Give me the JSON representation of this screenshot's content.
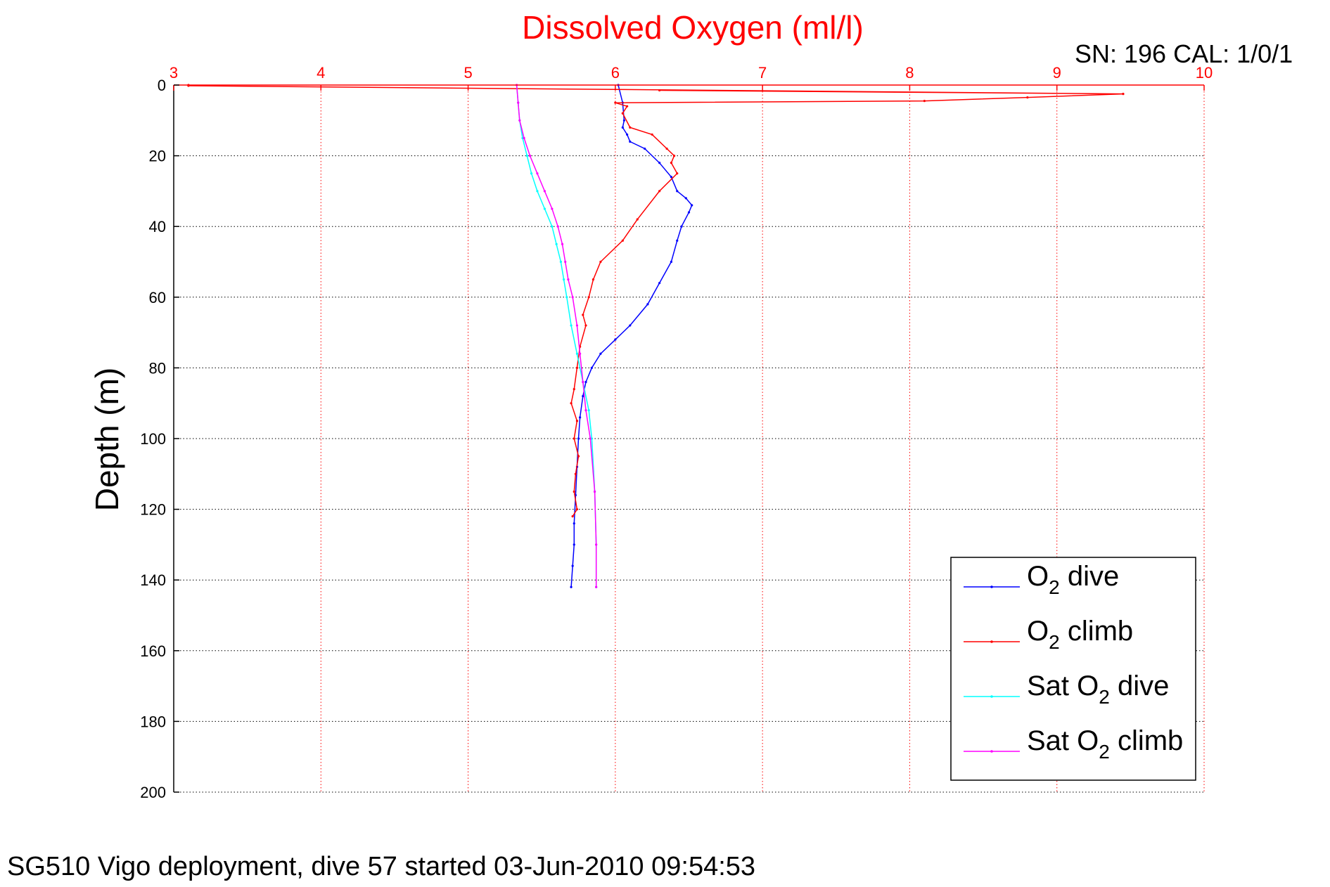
{
  "chart_data": {
    "type": "line",
    "title": "Dissolved Oxygen (ml/l)",
    "xlabel": "Dissolved Oxygen (ml/l)",
    "ylabel": "Depth (m)",
    "xlim": [
      3,
      10
    ],
    "ylim": [
      0,
      200
    ],
    "y_reversed": true,
    "x_axis_position": "top",
    "xticks": [
      "3",
      "4",
      "5",
      "6",
      "7",
      "8",
      "9",
      "10"
    ],
    "yticks": [
      "0",
      "20",
      "40",
      "60",
      "80",
      "100",
      "120",
      "140",
      "160",
      "180",
      "200"
    ],
    "grid": true,
    "legend_position": "bottom-right",
    "serial_label": "SN: 196  CAL: 1/0/1",
    "footer": "SG510 Vigo deployment, dive 57 started 03-Jun-2010 09:54:53",
    "series": [
      {
        "name": "O2 dive",
        "legend_prefix": "O",
        "legend_sub": "2",
        "legend_suffix": " dive",
        "color": "#0000ff",
        "x": [
          6.02,
          6.05,
          6.06,
          6.05,
          6.08,
          6.1,
          6.2,
          6.3,
          6.38,
          6.42,
          6.48,
          6.52,
          6.5,
          6.45,
          6.42,
          6.38,
          6.3,
          6.22,
          6.1,
          6.0,
          5.9,
          5.84,
          5.8,
          5.78,
          5.76,
          5.75,
          5.74,
          5.73,
          5.72,
          5.72,
          5.71,
          5.7
        ],
        "y": [
          0,
          5,
          10,
          12,
          14,
          16,
          18,
          22,
          26,
          30,
          32,
          34,
          36,
          40,
          44,
          50,
          56,
          62,
          68,
          72,
          76,
          80,
          84,
          88,
          94,
          100,
          108,
          116,
          124,
          130,
          136,
          142
        ]
      },
      {
        "name": "O2 climb",
        "legend_prefix": "O",
        "legend_sub": "2",
        "legend_suffix": " climb",
        "color": "#ff0000",
        "x": [
          3.1,
          3.1,
          9.45,
          6.3,
          9.45,
          8.8,
          8.1,
          6.0,
          6.08,
          6.05,
          6.1,
          6.25,
          6.35,
          6.4,
          6.38,
          6.42,
          6.3,
          6.15,
          6.05,
          5.9,
          5.85,
          5.82,
          5.78,
          5.8,
          5.76,
          5.74,
          5.72,
          5.7,
          5.74,
          5.72,
          5.75,
          5.73,
          5.72,
          5.74,
          5.71
        ],
        "y": [
          0,
          0.2,
          2.5,
          1.5,
          2.5,
          3.5,
          4.5,
          5.0,
          6.0,
          8.0,
          12.0,
          14.0,
          18.0,
          20.0,
          22.0,
          25.0,
          30.0,
          38.0,
          44.0,
          50.0,
          55.0,
          60.0,
          65.0,
          68.0,
          74.0,
          80.0,
          86.0,
          90.0,
          95.0,
          100.0,
          105.0,
          110.0,
          115.0,
          120.0,
          122.0
        ]
      },
      {
        "name": "Sat O2 dive",
        "legend_prefix": "Sat O",
        "legend_sub": "2",
        "legend_suffix": " dive",
        "color": "#00ffff",
        "x": [
          5.33,
          5.34,
          5.35,
          5.37,
          5.4,
          5.43,
          5.47,
          5.52,
          5.57,
          5.6,
          5.63,
          5.65,
          5.67,
          5.7,
          5.74,
          5.78,
          5.82,
          5.84,
          5.86,
          5.87,
          5.87
        ],
        "y": [
          0,
          5,
          10,
          15,
          20,
          25,
          30,
          35,
          40,
          45,
          50,
          55,
          60,
          68,
          76,
          84,
          92,
          100,
          115,
          130,
          142
        ]
      },
      {
        "name": "Sat O2 climb",
        "legend_prefix": "Sat O",
        "legend_sub": "2",
        "legend_suffix": " climb",
        "color": "#ff00ff",
        "x": [
          5.33,
          5.34,
          5.35,
          5.38,
          5.42,
          5.47,
          5.52,
          5.57,
          5.61,
          5.64,
          5.66,
          5.68,
          5.71,
          5.74,
          5.76,
          5.78,
          5.8,
          5.83,
          5.86,
          5.87,
          5.87
        ],
        "y": [
          0,
          5,
          10,
          15,
          20,
          25,
          30,
          35,
          40,
          45,
          50,
          55,
          60,
          68,
          76,
          84,
          92,
          100,
          115,
          130,
          142
        ]
      }
    ]
  }
}
